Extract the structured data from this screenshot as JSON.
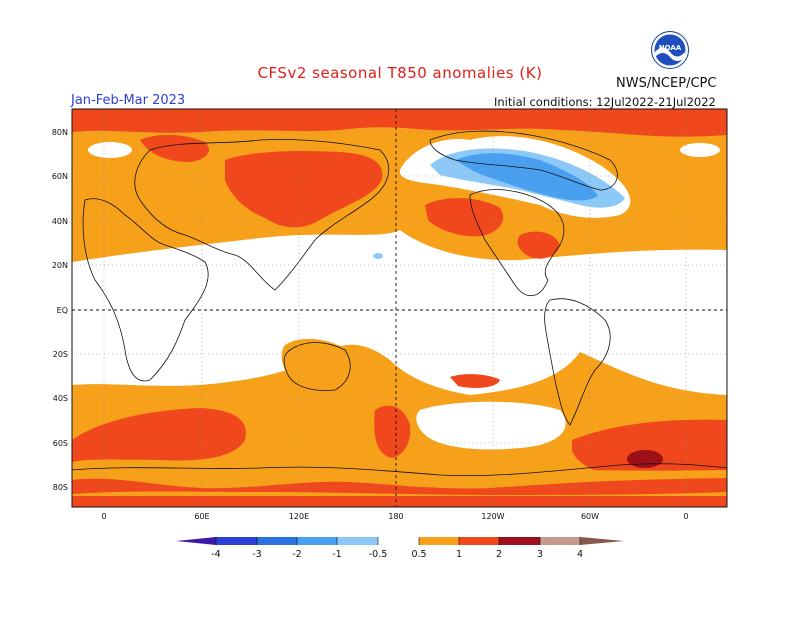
{
  "header": {
    "title": "CFSv2 seasonal T850 anomalies (K)",
    "season": "Jan-Feb-Mar 2023",
    "initial_conditions": "Initial conditions: 12Jul2022-21Jul2022",
    "agency": "NWS/NCEP/CPC",
    "logo_text": "NOAA"
  },
  "map": {
    "lat_labels": [
      "80N",
      "60N",
      "40N",
      "20N",
      "EQ",
      "20S",
      "40S",
      "60S",
      "80S"
    ],
    "lon_labels": [
      "0",
      "60E",
      "120E",
      "180",
      "120W",
      "60W",
      "0"
    ]
  },
  "colorbar": {
    "labels": [
      "-4",
      "-3",
      "-2",
      "-1",
      "-0.5",
      "0.5",
      "1",
      "2",
      "3",
      "4"
    ],
    "colors": [
      "#3c1aa8",
      "#2c3fd8",
      "#2a73df",
      "#4aa0f0",
      "#8cc8f8",
      "#ffffff",
      "#f7a01a",
      "#f0481c",
      "#d91e18",
      "#a0101c",
      "#c79a8e",
      "#8a5848"
    ]
  },
  "colors": {
    "title": "#e0201a",
    "season": "#2a3fd0",
    "warm_light": "#f7a01a",
    "warm_mid": "#f0481c",
    "warm_dark": "#9e1018",
    "cool_light": "#8cc8f8",
    "cool_mid": "#4aa0f0"
  }
}
